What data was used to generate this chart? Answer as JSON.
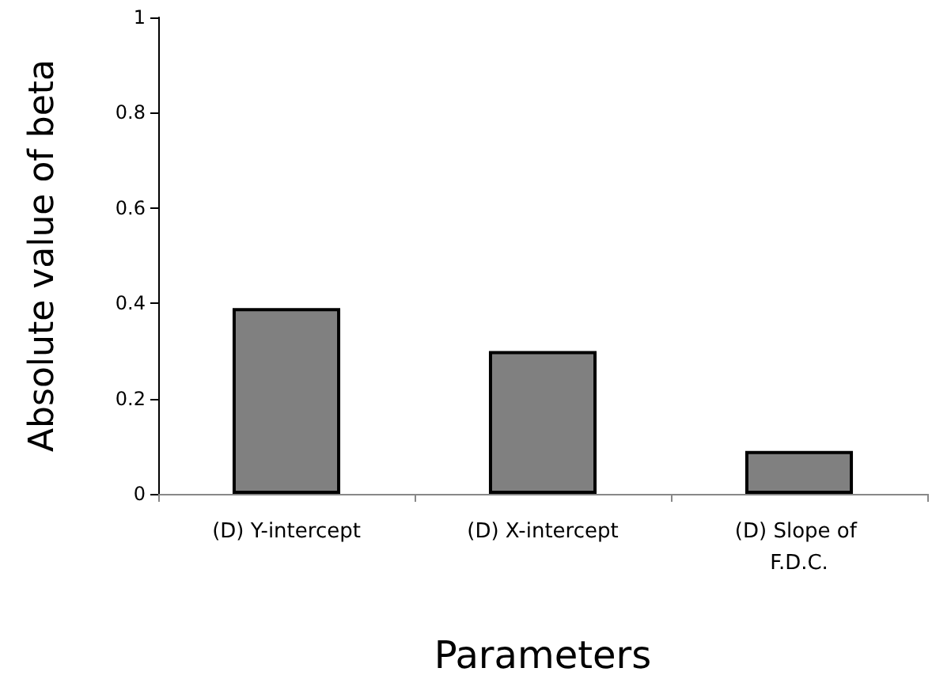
{
  "chart_data": {
    "type": "bar",
    "xlabel": "Parameters",
    "ylabel": "Absolute value of beta",
    "categories": [
      "(D) Y-intercept",
      "(D) X-intercept",
      "(D) Slope of F.D.C."
    ],
    "values": [
      0.39,
      0.3,
      0.09
    ],
    "color": "#808080",
    "ylim": [
      0,
      1
    ],
    "yticks": [
      0,
      0.2,
      0.4,
      0.6,
      0.8,
      1
    ],
    "grid": false
  }
}
